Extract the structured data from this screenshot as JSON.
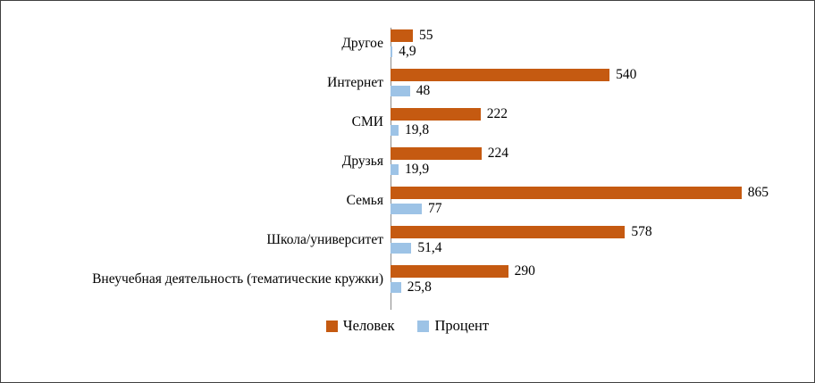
{
  "chart_data": {
    "type": "bar",
    "orientation": "horizontal",
    "title": "",
    "xlabel": "",
    "ylabel": "",
    "xlim": [
      0,
      1000
    ],
    "grid": false,
    "legend_position": "bottom",
    "axis_color": "#8a8a8a",
    "categories": [
      "Другое",
      "Интернет",
      "СМИ",
      "Друзья",
      "Семья",
      "Школа/университет",
      "Внеучебная деятельность (тематические кружки)"
    ],
    "series": [
      {
        "name": "Человек",
        "color": "#c55a11",
        "values": [
          55,
          540,
          222,
          224,
          865,
          578,
          290
        ],
        "display_values": [
          "55",
          "540",
          "222",
          "224",
          "865",
          "578",
          "290"
        ]
      },
      {
        "name": "Процент",
        "color": "#9dc3e6",
        "values": [
          4.9,
          48,
          19.8,
          19.9,
          77,
          51.4,
          25.8
        ],
        "display_values": [
          "4,9",
          "48",
          "19,8",
          "19,9",
          "77",
          "51,4",
          "25,8"
        ]
      }
    ]
  }
}
